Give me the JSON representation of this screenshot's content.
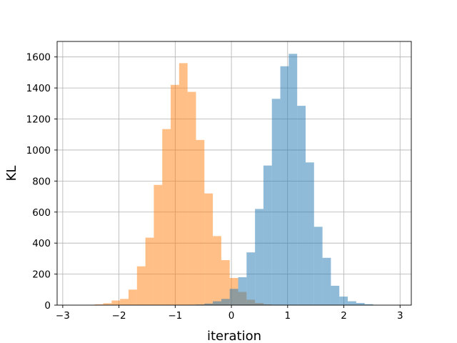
{
  "chart_data": {
    "type": "histogram",
    "title": "",
    "xlabel": "iteration",
    "ylabel": "KL",
    "xlim": [
      -3.1,
      3.2
    ],
    "ylim": [
      0,
      1700
    ],
    "xticks": [
      -3,
      -2,
      -1,
      0,
      1,
      2,
      3
    ],
    "xtick_labels": [
      "−3",
      "−2",
      "−1",
      "0",
      "1",
      "2",
      "3"
    ],
    "yticks": [
      0,
      200,
      400,
      600,
      800,
      1000,
      1200,
      1400,
      1600
    ],
    "ytick_labels": [
      "0",
      "200",
      "400",
      "600",
      "800",
      "1000",
      "1200",
      "1400",
      "1600"
    ],
    "grid": true,
    "legend": false,
    "series": [
      {
        "color": "#ff7f0e",
        "opacity": 0.5,
        "bins": [
          {
            "x0": -2.58,
            "x1": -2.43,
            "count": 2
          },
          {
            "x0": -2.43,
            "x1": -2.28,
            "count": 5
          },
          {
            "x0": -2.28,
            "x1": -2.13,
            "count": 12
          },
          {
            "x0": -2.13,
            "x1": -1.98,
            "count": 30
          },
          {
            "x0": -1.98,
            "x1": -1.83,
            "count": 40
          },
          {
            "x0": -1.83,
            "x1": -1.68,
            "count": 100
          },
          {
            "x0": -1.68,
            "x1": -1.53,
            "count": 250
          },
          {
            "x0": -1.53,
            "x1": -1.38,
            "count": 435
          },
          {
            "x0": -1.38,
            "x1": -1.23,
            "count": 775
          },
          {
            "x0": -1.23,
            "x1": -1.08,
            "count": 1135
          },
          {
            "x0": -1.08,
            "x1": -0.93,
            "count": 1420
          },
          {
            "x0": -0.93,
            "x1": -0.78,
            "count": 1560
          },
          {
            "x0": -0.78,
            "x1": -0.63,
            "count": 1375
          },
          {
            "x0": -0.63,
            "x1": -0.48,
            "count": 1065
          },
          {
            "x0": -0.48,
            "x1": -0.33,
            "count": 720
          },
          {
            "x0": -0.33,
            "x1": -0.18,
            "count": 445
          },
          {
            "x0": -0.18,
            "x1": -0.03,
            "count": 290
          },
          {
            "x0": -0.03,
            "x1": 0.12,
            "count": 175
          },
          {
            "x0": 0.12,
            "x1": 0.27,
            "count": 85
          },
          {
            "x0": 0.27,
            "x1": 0.42,
            "count": 35
          },
          {
            "x0": 0.42,
            "x1": 0.57,
            "count": 14
          },
          {
            "x0": 0.57,
            "x1": 0.72,
            "count": 5
          },
          {
            "x0": 0.72,
            "x1": 0.87,
            "count": 2
          }
        ]
      },
      {
        "color": "#1f77b4",
        "opacity": 0.5,
        "bins": [
          {
            "x0": -0.78,
            "x1": -0.63,
            "count": 2
          },
          {
            "x0": -0.63,
            "x1": -0.48,
            "count": 4
          },
          {
            "x0": -0.48,
            "x1": -0.33,
            "count": 10
          },
          {
            "x0": -0.33,
            "x1": -0.18,
            "count": 25
          },
          {
            "x0": -0.18,
            "x1": -0.03,
            "count": 40
          },
          {
            "x0": -0.03,
            "x1": 0.12,
            "count": 105
          },
          {
            "x0": 0.12,
            "x1": 0.27,
            "count": 180
          },
          {
            "x0": 0.27,
            "x1": 0.42,
            "count": 340
          },
          {
            "x0": 0.42,
            "x1": 0.57,
            "count": 620
          },
          {
            "x0": 0.57,
            "x1": 0.72,
            "count": 900
          },
          {
            "x0": 0.72,
            "x1": 0.87,
            "count": 1330
          },
          {
            "x0": 0.87,
            "x1": 1.02,
            "count": 1540
          },
          {
            "x0": 1.02,
            "x1": 1.17,
            "count": 1620
          },
          {
            "x0": 1.17,
            "x1": 1.32,
            "count": 1285
          },
          {
            "x0": 1.32,
            "x1": 1.47,
            "count": 920
          },
          {
            "x0": 1.47,
            "x1": 1.62,
            "count": 505
          },
          {
            "x0": 1.62,
            "x1": 1.77,
            "count": 305
          },
          {
            "x0": 1.77,
            "x1": 1.92,
            "count": 125
          },
          {
            "x0": 1.92,
            "x1": 2.07,
            "count": 55
          },
          {
            "x0": 2.07,
            "x1": 2.22,
            "count": 25
          },
          {
            "x0": 2.22,
            "x1": 2.37,
            "count": 14
          },
          {
            "x0": 2.37,
            "x1": 2.52,
            "count": 6
          },
          {
            "x0": 2.52,
            "x1": 2.67,
            "count": 2
          }
        ]
      }
    ]
  }
}
